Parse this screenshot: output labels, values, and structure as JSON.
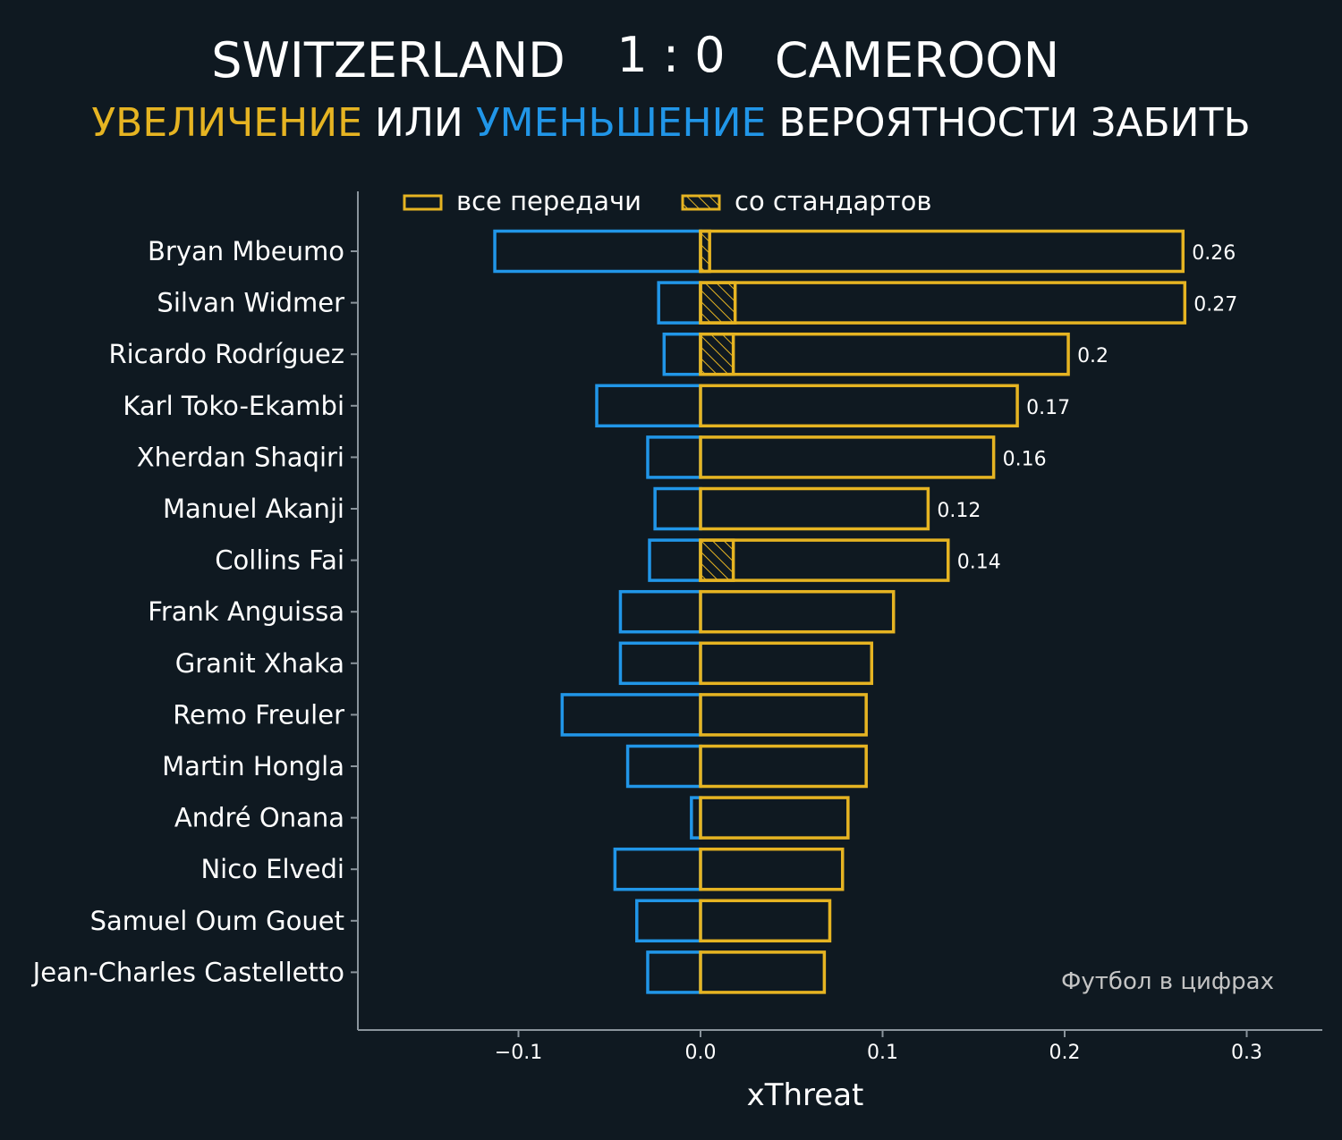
{
  "header": {
    "team_home": "SWITZERLAND",
    "score": "1 : 0",
    "team_away": "CAMEROON",
    "subtitle_increase": "УВЕЛИЧЕНИЕ",
    "subtitle_or": "ИЛИ",
    "subtitle_decrease": "УМЕНЬШЕНИЕ",
    "subtitle_rest": "ВЕРОЯТНОСТИ ЗАБИТЬ"
  },
  "credit": "Футбол в цифрах",
  "colors": {
    "background": "#0f1921",
    "increase": "#e6b422",
    "decrease": "#2196e8",
    "axis": "#8a949c",
    "text": "#ffffff"
  },
  "chart_data": {
    "type": "bar",
    "orientation": "horizontal",
    "xlabel": "xThreat",
    "xlim": [
      -0.19,
      0.34
    ],
    "xticks": [
      -0.1,
      0.0,
      0.1,
      0.2,
      0.3
    ],
    "xtick_labels": [
      "−0.1",
      "0.0",
      "0.1",
      "0.2",
      "0.3"
    ],
    "legend": {
      "position": "top",
      "entries": [
        {
          "label": "все передачи",
          "style": "outline"
        },
        {
          "label": "со стандартов",
          "style": "hatched"
        }
      ]
    },
    "categories": [
      "Bryan Mbeumo",
      "Silvan Widmer",
      "Ricardo Rodríguez",
      "Karl Toko-Ekambi",
      "Xherdan Shaqiri",
      "Manuel Akanji",
      "Collins Fai",
      "Frank Anguissa",
      "Granit Xhaka",
      "Remo Freuler",
      "Martin Hongla",
      "André Onana",
      "Nico Elvedi",
      "Samuel Oum Gouet",
      "Jean-Charles Castelletto"
    ],
    "series": [
      {
        "name": "",
        "values": [
          0.265,
          0.266,
          0.202,
          0.174,
          0.161,
          0.125,
          0.136,
          0.106,
          0.094,
          0.091,
          0.091,
          0.081,
          0.078,
          0.071,
          0.068
        ]
      },
      {
        "name": "",
        "values": [
          -0.113,
          -0.023,
          -0.02,
          -0.057,
          -0.029,
          -0.025,
          -0.028,
          -0.044,
          -0.044,
          -0.076,
          -0.04,
          -0.005,
          -0.047,
          -0.035,
          -0.029
        ]
      },
      {
        "name": "со стандартов",
        "values": [
          0.005,
          0.019,
          0.018,
          0,
          0,
          0,
          0.018,
          0,
          0,
          0,
          0,
          0,
          0,
          0,
          0
        ]
      }
    ],
    "value_labels": [
      "0.26",
      "0.27",
      "0.2",
      "0.17",
      "0.16",
      "0.12",
      "0.14",
      "",
      "",
      "",
      "",
      "",
      "",
      "",
      ""
    ]
  }
}
